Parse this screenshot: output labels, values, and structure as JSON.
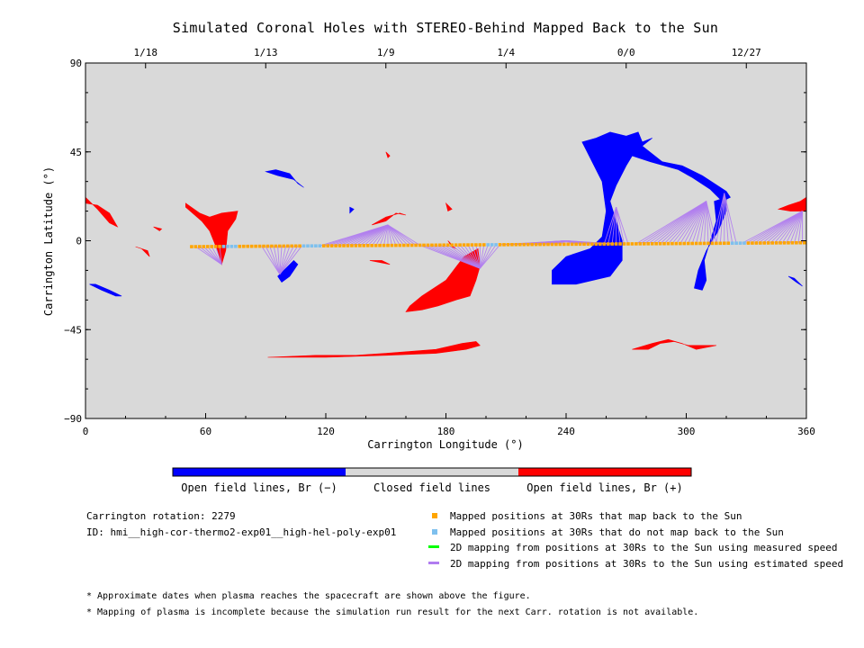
{
  "chart_data": {
    "type": "map",
    "title": "Simulated Coronal Holes with STEREO-Behind Mapped Back to the Sun",
    "xlabel": "Carrington Longitude (°)",
    "ylabel": "Carrington Latitude (°)",
    "xlim": [
      0,
      360
    ],
    "ylim": [
      -90,
      90
    ],
    "x_ticks": [
      "0",
      "60",
      "120",
      "180",
      "240",
      "300",
      "360"
    ],
    "y_ticks": [
      "90",
      "45",
      "0",
      "-45",
      "-90"
    ],
    "top_axis": {
      "ticks": [
        {
          "lon": 30,
          "label": "1/18"
        },
        {
          "lon": 90,
          "label": "1/13"
        },
        {
          "lon": 150,
          "label": "1/9"
        },
        {
          "lon": 210,
          "label": "1/4"
        },
        {
          "lon": 270,
          "label": "0/0"
        },
        {
          "lon": 330,
          "label": "12/27"
        }
      ]
    },
    "colors": {
      "background": "#d9d9d9",
      "open_negative": "#0000ff",
      "open_positive": "#ff0000",
      "closed": "#d9d9d9",
      "mapped_back": "#ffa500",
      "not_mapped": "#7ec0ee",
      "measured_speed": "#00ff00",
      "estimated_speed": "#b07cf0"
    },
    "regions_negative": [
      [
        [
          255,
          52
        ],
        [
          262,
          55
        ],
        [
          270,
          53
        ],
        [
          276,
          55
        ],
        [
          278,
          50
        ],
        [
          283,
          52
        ],
        [
          278,
          48
        ],
        [
          288,
          40
        ],
        [
          298,
          38
        ],
        [
          308,
          33
        ],
        [
          320,
          25
        ],
        [
          322,
          22
        ],
        [
          318,
          20
        ],
        [
          312,
          26
        ],
        [
          303,
          32
        ],
        [
          296,
          36
        ],
        [
          282,
          40
        ],
        [
          273,
          43
        ],
        [
          270,
          38
        ],
        [
          265,
          28
        ],
        [
          262,
          20
        ],
        [
          265,
          10
        ],
        [
          268,
          0
        ],
        [
          268,
          -10
        ],
        [
          262,
          -18
        ],
        [
          245,
          -22
        ],
        [
          233,
          -22
        ],
        [
          233,
          -15
        ],
        [
          240,
          -8
        ],
        [
          252,
          -4
        ],
        [
          258,
          2
        ],
        [
          260,
          15
        ],
        [
          258,
          30
        ],
        [
          253,
          40
        ],
        [
          250,
          46
        ],
        [
          248,
          50
        ]
      ],
      [
        [
          314,
          20
        ],
        [
          320,
          22
        ],
        [
          320,
          15
        ],
        [
          316,
          5
        ],
        [
          310,
          -5
        ],
        [
          306,
          -15
        ],
        [
          304,
          -24
        ],
        [
          308,
          -25
        ],
        [
          310,
          -20
        ],
        [
          309,
          -10
        ],
        [
          312,
          0
        ],
        [
          315,
          10
        ]
      ],
      [
        [
          2,
          -22
        ],
        [
          8,
          -25
        ],
        [
          15,
          -28
        ],
        [
          18,
          -28
        ],
        [
          12,
          -25
        ],
        [
          5,
          -22
        ]
      ],
      [
        [
          90,
          35
        ],
        [
          95,
          36
        ],
        [
          102,
          34
        ],
        [
          106,
          29
        ],
        [
          109,
          27
        ],
        [
          104,
          31
        ],
        [
          96,
          33
        ]
      ],
      [
        [
          96,
          -18
        ],
        [
          100,
          -14
        ],
        [
          104,
          -10
        ],
        [
          106,
          -12
        ],
        [
          102,
          -18
        ],
        [
          98,
          -21
        ]
      ],
      [
        [
          351,
          -18
        ],
        [
          355,
          -21
        ],
        [
          358,
          -23
        ],
        [
          354,
          -19
        ]
      ],
      [
        [
          132,
          17
        ],
        [
          134,
          16
        ],
        [
          132,
          14
        ]
      ]
    ],
    "regions_positive": [
      [
        [
          0,
          22
        ],
        [
          6,
          16
        ],
        [
          12,
          9
        ],
        [
          16,
          7
        ],
        [
          12,
          14
        ],
        [
          6,
          18
        ],
        [
          0,
          19
        ]
      ],
      [
        [
          357,
          20
        ],
        [
          360,
          22
        ],
        [
          360,
          15
        ],
        [
          352,
          15
        ],
        [
          346,
          16
        ],
        [
          351,
          18
        ]
      ],
      [
        [
          50,
          17
        ],
        [
          58,
          10
        ],
        [
          62,
          5
        ],
        [
          66,
          -5
        ],
        [
          68,
          -12
        ],
        [
          70,
          -5
        ],
        [
          71,
          5
        ],
        [
          75,
          11
        ],
        [
          76,
          15
        ],
        [
          68,
          14
        ],
        [
          62,
          12
        ],
        [
          57,
          14
        ],
        [
          50,
          19
        ]
      ],
      [
        [
          34,
          7
        ],
        [
          38,
          6
        ],
        [
          37,
          5
        ]
      ],
      [
        [
          25,
          -3
        ],
        [
          31,
          -5
        ],
        [
          32,
          -8
        ],
        [
          28,
          -4
        ]
      ],
      [
        [
          160,
          13
        ],
        [
          155,
          14
        ],
        [
          150,
          10
        ],
        [
          143,
          8
        ],
        [
          150,
          12
        ],
        [
          157,
          14
        ]
      ],
      [
        [
          197,
          -13
        ],
        [
          196,
          -4
        ],
        [
          189,
          -8
        ],
        [
          180,
          -20
        ],
        [
          168,
          -28
        ],
        [
          162,
          -33
        ],
        [
          160,
          -36
        ],
        [
          168,
          -35
        ],
        [
          176,
          -33
        ],
        [
          185,
          -30
        ],
        [
          192,
          -28
        ],
        [
          195,
          -20
        ]
      ],
      [
        [
          273,
          -55
        ],
        [
          283,
          -52
        ],
        [
          291,
          -50
        ],
        [
          298,
          -52
        ],
        [
          305,
          -55
        ],
        [
          315,
          -53
        ],
        [
          301,
          -53
        ],
        [
          294,
          -51
        ],
        [
          287,
          -52
        ],
        [
          281,
          -55
        ]
      ],
      [
        [
          91,
          -59
        ],
        [
          115,
          -58
        ],
        [
          135,
          -58
        ],
        [
          150,
          -57
        ],
        [
          175,
          -55
        ],
        [
          188,
          -52
        ],
        [
          195,
          -51
        ],
        [
          197,
          -53
        ],
        [
          190,
          -55
        ],
        [
          175,
          -57
        ],
        [
          150,
          -58
        ],
        [
          120,
          -59
        ]
      ],
      [
        [
          150,
          45
        ],
        [
          152,
          43
        ],
        [
          151,
          42
        ]
      ],
      [
        [
          142,
          -10
        ],
        [
          148,
          -10
        ],
        [
          152,
          -12
        ]
      ],
      [
        [
          180,
          19
        ],
        [
          183,
          16
        ],
        [
          181,
          15
        ]
      ],
      [
        [
          181,
          0
        ],
        [
          183,
          -3
        ],
        [
          185,
          -4
        ]
      ]
    ],
    "mapping_lines": [
      {
        "orbit": [
          55,
          68
        ],
        "target": [
          68,
          -12
        ]
      },
      {
        "orbit": [
          88,
          108
        ],
        "target": [
          97,
          -17
        ]
      },
      {
        "orbit": [
          117,
          167
        ],
        "target": [
          151,
          8
        ]
      },
      {
        "orbit": [
          167,
          207
        ],
        "target": [
          197,
          -14
        ]
      },
      {
        "orbit": [
          207,
          265
        ],
        "target": [
          240,
          0
        ]
      },
      {
        "orbit": [
          259,
          272
        ],
        "target": [
          265,
          17
        ]
      },
      {
        "orbit": [
          275,
          315
        ],
        "target": [
          310,
          20
        ]
      },
      {
        "orbit": [
          313,
          325
        ],
        "target": [
          319,
          24
        ]
      },
      {
        "orbit": [
          328,
          359
        ],
        "target": [
          358,
          15
        ]
      }
    ],
    "orbit_lat": [
      -3,
      -1
    ],
    "orbit_lon": [
      53,
      360,
      2
    ],
    "not_mapped_ranges": [
      [
        68,
        76
      ],
      [
        108,
        118
      ],
      [
        200,
        206
      ],
      [
        323,
        330
      ]
    ]
  },
  "colorbar": {
    "labels": [
      "Open field lines, Br (−)",
      "Closed field lines",
      "Open field lines, Br (+)"
    ]
  },
  "info": {
    "rotation": "Carrington rotation: 2279",
    "id": "ID: hmi__high-cor-thermo2-exp01__high-hel-poly-exp01"
  },
  "legend": [
    {
      "label": "Mapped positions at 30Rs that map back to the Sun",
      "symbol": "square",
      "color": "#ffa500"
    },
    {
      "label": "Mapped positions at 30Rs that do not map back to the Sun",
      "symbol": "square",
      "color": "#7ec0ee"
    },
    {
      "label": "2D mapping from positions at 30Rs to the Sun using measured speed",
      "symbol": "line",
      "color": "#00ff00"
    },
    {
      "label": "2D mapping from positions at 30Rs to the Sun using estimated speed",
      "symbol": "line",
      "color": "#b07cf0"
    }
  ],
  "footnotes": [
    "* Approximate dates when plasma reaches the spacecraft are shown above the figure.",
    "* Mapping of plasma is incomplete because the simulation run result for the next Carr. rotation is not available."
  ]
}
